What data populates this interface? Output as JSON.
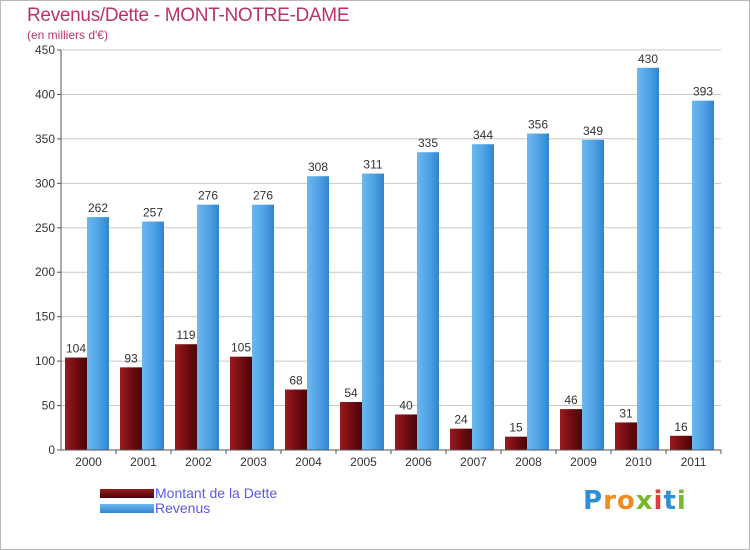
{
  "header": {
    "title": "Revenus/Dette - MONT-NOTRE-DAME",
    "subtitle": "(en milliers d'€)"
  },
  "chart_data": {
    "type": "bar",
    "categories": [
      "2000",
      "2001",
      "2002",
      "2003",
      "2004",
      "2005",
      "2006",
      "2007",
      "2008",
      "2009",
      "2010",
      "2011"
    ],
    "series": [
      {
        "name": "Montant de la Dette",
        "color": "#7a0c12",
        "values": [
          104,
          93,
          119,
          105,
          68,
          54,
          40,
          24,
          15,
          46,
          31,
          16
        ]
      },
      {
        "name": "Revenus",
        "color": "#4ea4e6",
        "values": [
          262,
          257,
          276,
          276,
          308,
          311,
          335,
          344,
          356,
          349,
          430,
          393
        ]
      }
    ],
    "ylim": [
      0,
      450
    ],
    "yticks": [
      0,
      50,
      100,
      150,
      200,
      250,
      300,
      350,
      400,
      450
    ],
    "grid": true,
    "legend_position": "bottom-left"
  },
  "branding": {
    "logo_letters": [
      "P",
      "r",
      "o",
      "x",
      "i",
      "t",
      "i"
    ],
    "logo_colors": [
      "#2e8fd6",
      "#f08c1e",
      "#f08c1e",
      "#7ab82a",
      "#e23b3b",
      "#2e8fd6",
      "#7ab82a"
    ]
  }
}
